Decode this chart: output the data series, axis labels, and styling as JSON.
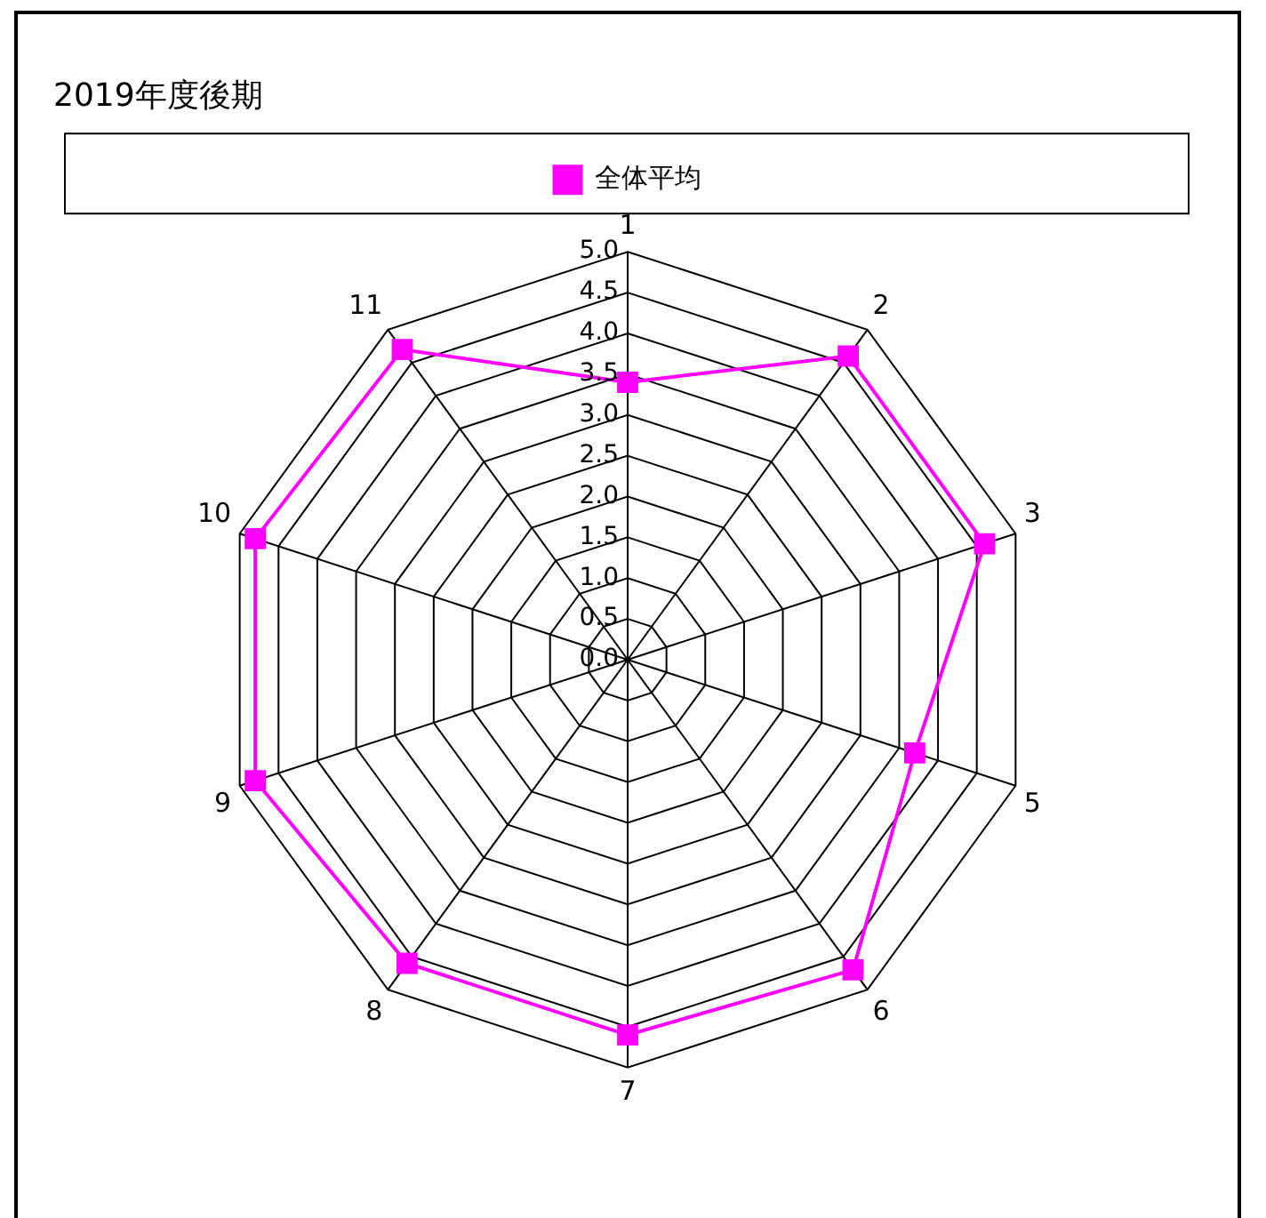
{
  "chart_data": {
    "type": "radar",
    "title": "2019年度後期",
    "categories": [
      "1",
      "2",
      "3",
      "5",
      "6",
      "7",
      "8",
      "9",
      "10",
      "11"
    ],
    "series": [
      {
        "name": "全体平均",
        "color": "#ff00ff",
        "values": [
          3.4,
          4.6,
          4.6,
          3.7,
          4.7,
          4.6,
          4.6,
          4.8,
          4.8,
          4.7
        ]
      }
    ],
    "ylim": [
      0,
      5
    ],
    "yticks": [
      {
        "value": 0,
        "label": "0.0"
      },
      0.5,
      {
        "value": 1,
        "label": "1.0"
      },
      1.5,
      {
        "value": 2,
        "label": "2.0"
      },
      2.5,
      {
        "value": 3,
        "label": "3.0"
      },
      3.5,
      {
        "value": 4,
        "label": "4.0"
      },
      4.5,
      {
        "value": 5,
        "label": "5.0"
      }
    ],
    "grid": true,
    "legend": "top",
    "marker": "square"
  }
}
